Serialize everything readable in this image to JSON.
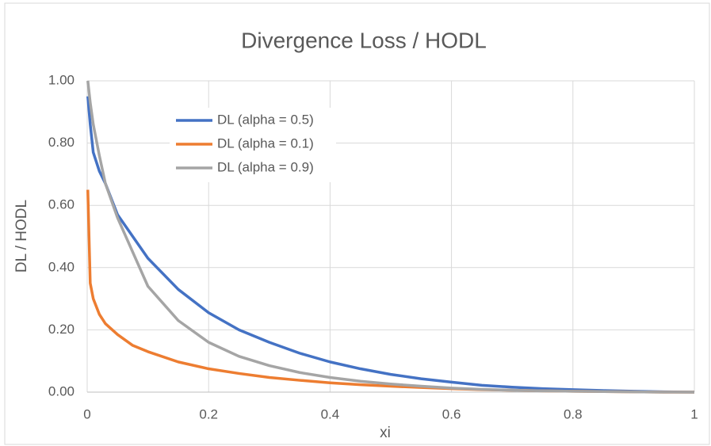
{
  "chart_data": {
    "type": "line",
    "title": "Divergence Loss / HODL",
    "xlabel": "xi",
    "ylabel": "DL / HODL",
    "x": [
      0.001,
      0.005,
      0.01,
      0.02,
      0.03,
      0.05,
      0.075,
      0.1,
      0.15,
      0.2,
      0.25,
      0.3,
      0.35,
      0.4,
      0.45,
      0.5,
      0.55,
      0.6,
      0.65,
      0.7,
      0.75,
      0.8,
      0.85,
      0.9,
      0.95,
      1
    ],
    "series": [
      {
        "name": "DL (alpha = 0.5)",
        "color": "#4472c4",
        "values": [
          0.95,
          0.86,
          0.77,
          0.71,
          0.67,
          0.57,
          0.5,
          0.43,
          0.33,
          0.255,
          0.2,
          0.16,
          0.125,
          0.097,
          0.075,
          0.057,
          0.043,
          0.032,
          0.022,
          0.016,
          0.011,
          0.008,
          0.005,
          0.003,
          0.001,
          0
        ]
      },
      {
        "name": "DL (alpha = 0.1)",
        "color": "#ed7d31",
        "values": [
          0.65,
          0.35,
          0.3,
          0.25,
          0.22,
          0.185,
          0.15,
          0.13,
          0.097,
          0.075,
          0.06,
          0.047,
          0.038,
          0.03,
          0.024,
          0.019,
          0.015,
          0.011,
          0.008,
          0.006,
          0.004,
          0.003,
          0.002,
          0.001,
          0,
          0
        ]
      },
      {
        "name": "DL (alpha = 0.9)",
        "color": "#a5a5a5",
        "values": [
          1.0,
          0.93,
          0.86,
          0.76,
          0.67,
          0.56,
          0.45,
          0.34,
          0.23,
          0.16,
          0.115,
          0.085,
          0.063,
          0.047,
          0.035,
          0.026,
          0.019,
          0.013,
          0.009,
          0.006,
          0.004,
          0.003,
          0.002,
          0.001,
          0,
          0
        ]
      }
    ],
    "xlim": [
      0,
      1
    ],
    "xticks": [
      0,
      0.2,
      0.4,
      0.6,
      0.8,
      1
    ],
    "ylim": [
      0,
      1
    ],
    "yticks": [
      {
        "value": 0,
        "label": "0.00"
      },
      {
        "value": 0.2,
        "label": "0.20"
      },
      {
        "value": 0.4,
        "label": "0.40"
      },
      {
        "value": 0.6,
        "label": "0.60"
      },
      {
        "value": 0.8,
        "label": "0.80"
      },
      {
        "value": 1,
        "label": "1.00"
      }
    ],
    "grid": true,
    "legend": "upper left"
  }
}
